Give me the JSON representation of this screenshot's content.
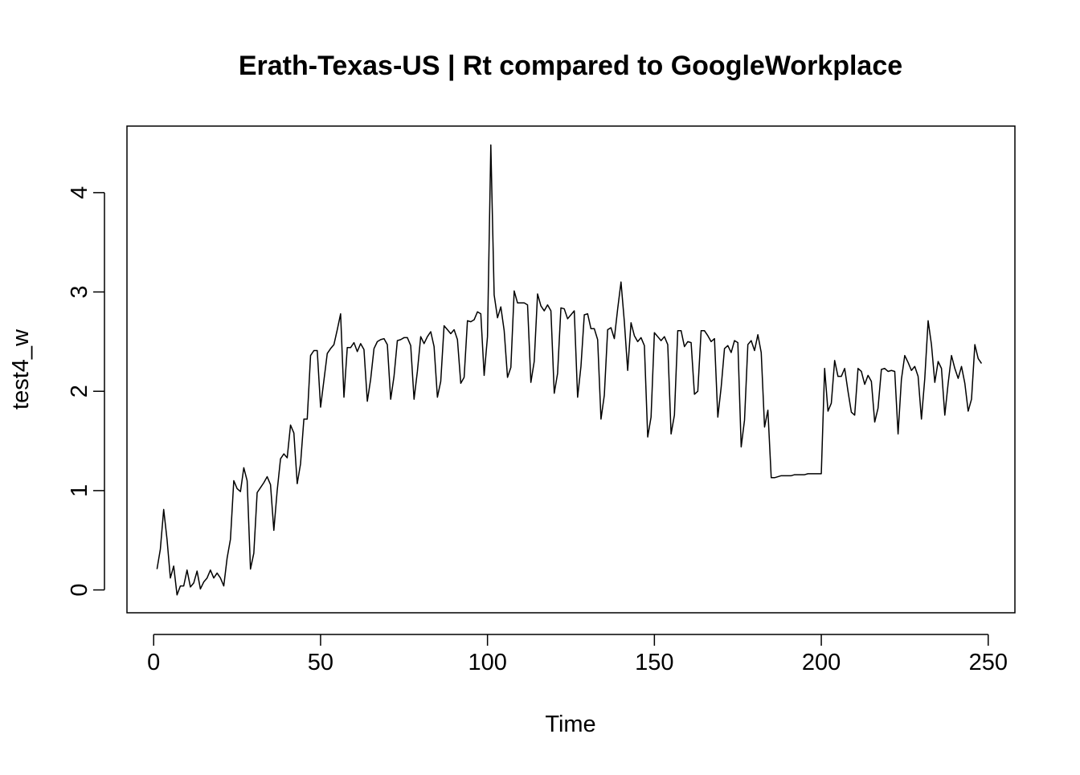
{
  "chart_data": {
    "type": "line",
    "title": "Erath-Texas-US | Rt compared to GoogleWorkplace",
    "xlabel": "Time",
    "ylabel": "test4_w",
    "xlim": [
      -8,
      258
    ],
    "ylim": [
      -0.23,
      4.67
    ],
    "x_ticks": [
      0,
      50,
      100,
      150,
      200,
      250
    ],
    "y_ticks": [
      0,
      1,
      2,
      3,
      4
    ],
    "grid": false,
    "legend": "none",
    "line_color": "#000000",
    "series": [
      {
        "points": [
          [
            1,
            0.21
          ],
          [
            2,
            0.41
          ],
          [
            3,
            0.81
          ],
          [
            4,
            0.51
          ],
          [
            5,
            0.12
          ],
          [
            6,
            0.24
          ],
          [
            7,
            -0.05
          ],
          [
            8,
            0.04
          ],
          [
            9,
            0.04
          ],
          [
            10,
            0.2
          ],
          [
            11,
            0.03
          ],
          [
            12,
            0.07
          ],
          [
            13,
            0.19
          ],
          [
            14,
            0.01
          ],
          [
            15,
            0.08
          ],
          [
            16,
            0.12
          ],
          [
            17,
            0.2
          ],
          [
            18,
            0.12
          ],
          [
            19,
            0.17
          ],
          [
            20,
            0.12
          ],
          [
            21,
            0.04
          ],
          [
            22,
            0.32
          ],
          [
            23,
            0.51
          ],
          [
            24,
            1.1
          ],
          [
            25,
            1.02
          ],
          [
            26,
            0.99
          ],
          [
            27,
            1.23
          ],
          [
            28,
            1.1
          ],
          [
            29,
            0.21
          ],
          [
            30,
            0.37
          ],
          [
            31,
            0.98
          ],
          [
            32,
            1.03
          ],
          [
            33,
            1.08
          ],
          [
            34,
            1.14
          ],
          [
            35,
            1.06
          ],
          [
            36,
            0.6
          ],
          [
            37,
            1.0
          ],
          [
            38,
            1.32
          ],
          [
            39,
            1.37
          ],
          [
            40,
            1.33
          ],
          [
            41,
            1.66
          ],
          [
            42,
            1.58
          ],
          [
            43,
            1.07
          ],
          [
            44,
            1.27
          ],
          [
            45,
            1.72
          ],
          [
            46,
            1.72
          ],
          [
            47,
            2.36
          ],
          [
            48,
            2.41
          ],
          [
            49,
            2.41
          ],
          [
            50,
            1.84
          ],
          [
            51,
            2.11
          ],
          [
            52,
            2.38
          ],
          [
            53,
            2.43
          ],
          [
            54,
            2.47
          ],
          [
            55,
            2.62
          ],
          [
            56,
            2.78
          ],
          [
            57,
            1.94
          ],
          [
            58,
            2.44
          ],
          [
            59,
            2.44
          ],
          [
            60,
            2.49
          ],
          [
            61,
            2.4
          ],
          [
            62,
            2.48
          ],
          [
            63,
            2.42
          ],
          [
            64,
            1.9
          ],
          [
            65,
            2.12
          ],
          [
            66,
            2.43
          ],
          [
            67,
            2.5
          ],
          [
            68,
            2.52
          ],
          [
            69,
            2.53
          ],
          [
            70,
            2.47
          ],
          [
            71,
            1.92
          ],
          [
            72,
            2.15
          ],
          [
            73,
            2.51
          ],
          [
            74,
            2.52
          ],
          [
            75,
            2.54
          ],
          [
            76,
            2.54
          ],
          [
            77,
            2.46
          ],
          [
            78,
            1.92
          ],
          [
            79,
            2.2
          ],
          [
            80,
            2.55
          ],
          [
            81,
            2.48
          ],
          [
            82,
            2.55
          ],
          [
            83,
            2.6
          ],
          [
            84,
            2.45
          ],
          [
            85,
            1.94
          ],
          [
            86,
            2.1
          ],
          [
            87,
            2.66
          ],
          [
            88,
            2.62
          ],
          [
            89,
            2.58
          ],
          [
            90,
            2.62
          ],
          [
            91,
            2.52
          ],
          [
            92,
            2.08
          ],
          [
            93,
            2.14
          ],
          [
            94,
            2.71
          ],
          [
            95,
            2.7
          ],
          [
            96,
            2.72
          ],
          [
            97,
            2.8
          ],
          [
            98,
            2.78
          ],
          [
            99,
            2.16
          ],
          [
            100,
            2.55
          ],
          [
            101,
            4.48
          ],
          [
            102,
            2.97
          ],
          [
            103,
            2.74
          ],
          [
            104,
            2.85
          ],
          [
            105,
            2.61
          ],
          [
            106,
            2.14
          ],
          [
            107,
            2.24
          ],
          [
            108,
            3.01
          ],
          [
            109,
            2.89
          ],
          [
            110,
            2.89
          ],
          [
            111,
            2.89
          ],
          [
            112,
            2.87
          ],
          [
            113,
            2.09
          ],
          [
            114,
            2.3
          ],
          [
            115,
            2.98
          ],
          [
            116,
            2.86
          ],
          [
            117,
            2.81
          ],
          [
            118,
            2.87
          ],
          [
            119,
            2.81
          ],
          [
            120,
            1.98
          ],
          [
            121,
            2.18
          ],
          [
            122,
            2.84
          ],
          [
            123,
            2.83
          ],
          [
            124,
            2.73
          ],
          [
            125,
            2.77
          ],
          [
            126,
            2.81
          ],
          [
            127,
            1.94
          ],
          [
            128,
            2.25
          ],
          [
            129,
            2.77
          ],
          [
            130,
            2.78
          ],
          [
            131,
            2.63
          ],
          [
            132,
            2.63
          ],
          [
            133,
            2.52
          ],
          [
            134,
            1.72
          ],
          [
            135,
            1.96
          ],
          [
            136,
            2.62
          ],
          [
            137,
            2.64
          ],
          [
            138,
            2.53
          ],
          [
            139,
            2.83
          ],
          [
            140,
            3.1
          ],
          [
            141,
            2.7
          ],
          [
            142,
            2.21
          ],
          [
            143,
            2.69
          ],
          [
            144,
            2.56
          ],
          [
            145,
            2.5
          ],
          [
            146,
            2.54
          ],
          [
            147,
            2.46
          ],
          [
            148,
            1.54
          ],
          [
            149,
            1.74
          ],
          [
            150,
            2.59
          ],
          [
            151,
            2.55
          ],
          [
            152,
            2.51
          ],
          [
            153,
            2.55
          ],
          [
            154,
            2.47
          ],
          [
            155,
            1.57
          ],
          [
            156,
            1.76
          ],
          [
            157,
            2.61
          ],
          [
            158,
            2.61
          ],
          [
            159,
            2.45
          ],
          [
            160,
            2.5
          ],
          [
            161,
            2.49
          ],
          [
            162,
            1.97
          ],
          [
            163,
            2.0
          ],
          [
            164,
            2.61
          ],
          [
            165,
            2.61
          ],
          [
            166,
            2.56
          ],
          [
            167,
            2.5
          ],
          [
            168,
            2.53
          ],
          [
            169,
            1.74
          ],
          [
            170,
            2.04
          ],
          [
            171,
            2.43
          ],
          [
            172,
            2.46
          ],
          [
            173,
            2.39
          ],
          [
            174,
            2.51
          ],
          [
            175,
            2.49
          ],
          [
            176,
            1.44
          ],
          [
            177,
            1.71
          ],
          [
            178,
            2.47
          ],
          [
            179,
            2.51
          ],
          [
            180,
            2.41
          ],
          [
            181,
            2.57
          ],
          [
            182,
            2.39
          ],
          [
            183,
            1.64
          ],
          [
            184,
            1.81
          ],
          [
            185,
            1.13
          ],
          [
            186,
            1.13
          ],
          [
            187,
            1.14
          ],
          [
            188,
            1.15
          ],
          [
            189,
            1.15
          ],
          [
            190,
            1.15
          ],
          [
            191,
            1.15
          ],
          [
            192,
            1.16
          ],
          [
            193,
            1.16
          ],
          [
            194,
            1.16
          ],
          [
            195,
            1.16
          ],
          [
            196,
            1.17
          ],
          [
            197,
            1.17
          ],
          [
            198,
            1.17
          ],
          [
            199,
            1.17
          ],
          [
            200,
            1.17
          ],
          [
            201,
            2.23
          ],
          [
            202,
            1.8
          ],
          [
            203,
            1.88
          ],
          [
            204,
            2.31
          ],
          [
            205,
            2.15
          ],
          [
            206,
            2.15
          ],
          [
            207,
            2.23
          ],
          [
            208,
            2.0
          ],
          [
            209,
            1.79
          ],
          [
            210,
            1.76
          ],
          [
            211,
            2.23
          ],
          [
            212,
            2.2
          ],
          [
            213,
            2.07
          ],
          [
            214,
            2.16
          ],
          [
            215,
            2.1
          ],
          [
            216,
            1.69
          ],
          [
            217,
            1.83
          ],
          [
            218,
            2.22
          ],
          [
            219,
            2.23
          ],
          [
            220,
            2.2
          ],
          [
            221,
            2.21
          ],
          [
            222,
            2.2
          ],
          [
            223,
            1.57
          ],
          [
            224,
            2.12
          ],
          [
            225,
            2.36
          ],
          [
            226,
            2.29
          ],
          [
            227,
            2.21
          ],
          [
            228,
            2.25
          ],
          [
            229,
            2.15
          ],
          [
            230,
            1.72
          ],
          [
            231,
            2.13
          ],
          [
            232,
            2.71
          ],
          [
            233,
            2.47
          ],
          [
            234,
            2.09
          ],
          [
            235,
            2.3
          ],
          [
            236,
            2.23
          ],
          [
            237,
            1.76
          ],
          [
            238,
            2.08
          ],
          [
            239,
            2.36
          ],
          [
            240,
            2.23
          ],
          [
            241,
            2.13
          ],
          [
            242,
            2.25
          ],
          [
            243,
            2.08
          ],
          [
            244,
            1.8
          ],
          [
            245,
            1.92
          ],
          [
            246,
            2.47
          ],
          [
            247,
            2.33
          ],
          [
            248,
            2.28
          ]
        ]
      }
    ]
  }
}
